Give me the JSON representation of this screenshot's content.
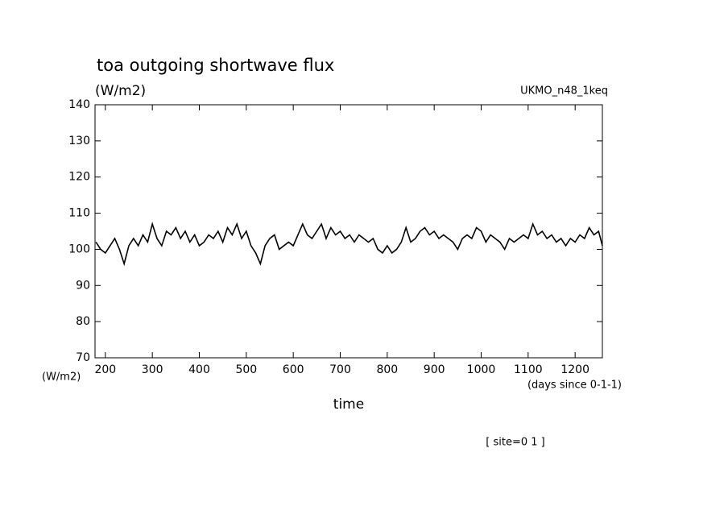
{
  "chart_data": {
    "type": "line",
    "title": "toa outgoing shortwave flux",
    "y_unit_top": "(W/m2)",
    "y_unit_bottom": "(W/m2)",
    "model": "UKMO_n48_1keq",
    "x_unit": "(days since 0-1-1)",
    "x_label": "time",
    "footnote": "[ site=0 1 ]",
    "xlim": [
      178,
      1258
    ],
    "ylim": [
      70,
      140
    ],
    "xticks": [
      200,
      300,
      400,
      500,
      600,
      700,
      800,
      900,
      1000,
      1100,
      1200
    ],
    "yticks": [
      70,
      80,
      90,
      100,
      110,
      120,
      130,
      140
    ],
    "x": [
      180,
      190,
      200,
      210,
      220,
      230,
      240,
      250,
      260,
      270,
      280,
      290,
      300,
      310,
      320,
      330,
      340,
      350,
      360,
      370,
      380,
      390,
      400,
      410,
      420,
      430,
      440,
      450,
      460,
      470,
      480,
      490,
      500,
      510,
      520,
      530,
      540,
      550,
      560,
      570,
      580,
      590,
      600,
      610,
      620,
      630,
      640,
      650,
      660,
      670,
      680,
      690,
      700,
      710,
      720,
      730,
      740,
      750,
      760,
      770,
      780,
      790,
      800,
      810,
      820,
      830,
      840,
      850,
      860,
      870,
      880,
      890,
      900,
      910,
      920,
      930,
      940,
      950,
      960,
      970,
      980,
      990,
      1000,
      1010,
      1020,
      1030,
      1040,
      1050,
      1060,
      1070,
      1080,
      1090,
      1100,
      1110,
      1120,
      1130,
      1140,
      1150,
      1160,
      1170,
      1180,
      1190,
      1200,
      1210,
      1220,
      1230,
      1240,
      1250,
      1258
    ],
    "series": [
      {
        "color": "#000000",
        "values": [
          102,
          100,
          99,
          101,
          103,
          100,
          96,
          101,
          103,
          101,
          104,
          102,
          107,
          103,
          101,
          105,
          104,
          106,
          103,
          105,
          102,
          104,
          101,
          102,
          104,
          103,
          105,
          102,
          106,
          104,
          107,
          103,
          105,
          101,
          99,
          96,
          101,
          103,
          104,
          100,
          101,
          102,
          101,
          104,
          107,
          104,
          103,
          105,
          107,
          103,
          106,
          104,
          105,
          103,
          104,
          102,
          104,
          103,
          102,
          103,
          100,
          99,
          101,
          99,
          100,
          102,
          106,
          102,
          103,
          105,
          106,
          104,
          105,
          103,
          104,
          103,
          102,
          100,
          103,
          104,
          103,
          106,
          105,
          102,
          104,
          103,
          102,
          100,
          103,
          102,
          103,
          104,
          103,
          107,
          104,
          105,
          103,
          104,
          102,
          103,
          101,
          103,
          102,
          104,
          103,
          106,
          104,
          105,
          101
        ]
      }
    ]
  }
}
